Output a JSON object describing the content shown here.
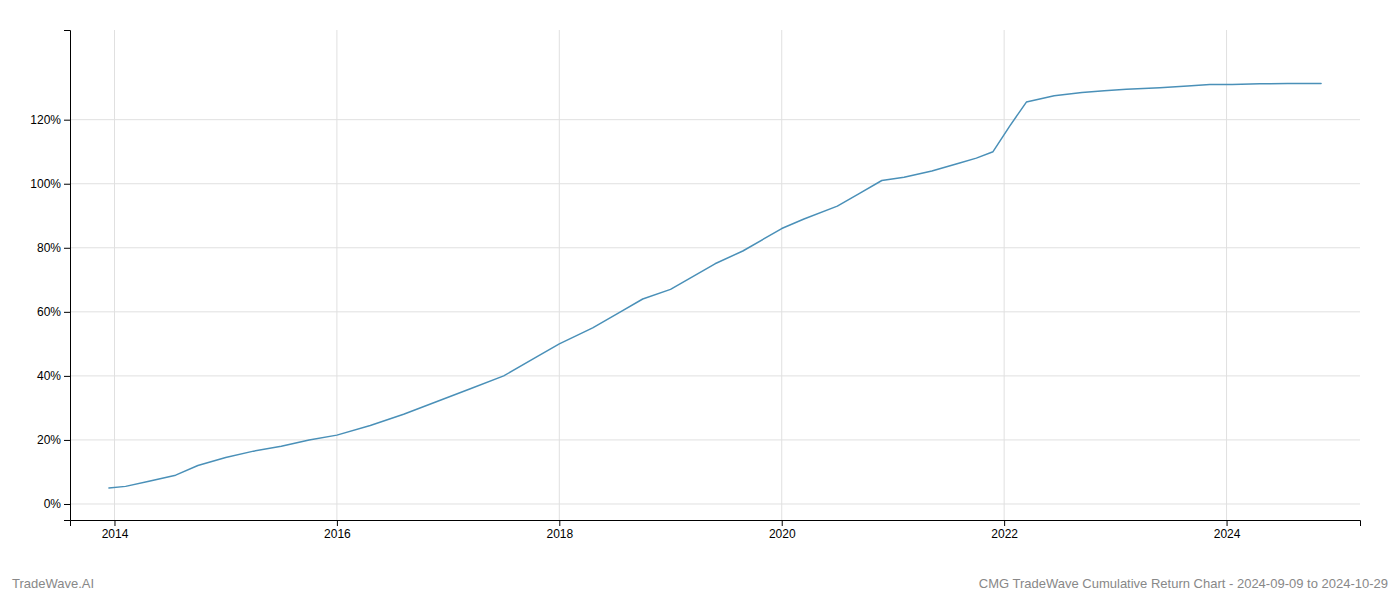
{
  "chart_data": {
    "type": "line",
    "title": "CMG TradeWave Cumulative Return Chart - 2024-09-09 to 2024-10-29",
    "annotations": [
      "TradeWave.AI"
    ],
    "color": "#4a90b8",
    "x": [
      2013.95,
      2014.1,
      2014.3,
      2014.55,
      2014.75,
      2015.0,
      2015.25,
      2015.5,
      2015.75,
      2016.0,
      2016.3,
      2016.6,
      2016.9,
      2017.2,
      2017.5,
      2017.8,
      2018.0,
      2018.3,
      2018.55,
      2018.75,
      2019.0,
      2019.2,
      2019.4,
      2019.65,
      2019.85,
      2020.0,
      2020.2,
      2020.5,
      2020.7,
      2020.9,
      2021.1,
      2021.35,
      2021.6,
      2021.75,
      2021.9,
      2022.05,
      2022.2,
      2022.45,
      2022.7,
      2022.9,
      2023.1,
      2023.4,
      2023.65,
      2023.85,
      2024.05,
      2024.3,
      2024.55,
      2024.75,
      2024.85
    ],
    "values": [
      5.0,
      5.5,
      7.0,
      9.0,
      12.0,
      14.5,
      16.5,
      18.0,
      20.0,
      21.5,
      24.5,
      28.0,
      32.0,
      36.0,
      40.0,
      46.0,
      50.0,
      55.0,
      60.0,
      64.0,
      67.0,
      71.0,
      75.0,
      79.0,
      83.0,
      86.0,
      89.0,
      93.0,
      97.0,
      101.0,
      102.0,
      104.0,
      106.5,
      108.0,
      110.0,
      118.0,
      125.5,
      127.5,
      128.5,
      129.0,
      129.5,
      130.0,
      130.5,
      131.0,
      131.0,
      131.2,
      131.3,
      131.3,
      131.3
    ],
    "xlim": [
      2013.6,
      2025.2
    ],
    "ylim": [
      -5,
      148
    ],
    "xticks": [
      2014,
      2016,
      2018,
      2020,
      2022,
      2024
    ],
    "yticks": [
      {
        "value": 0,
        "label": "0%"
      },
      {
        "value": 20,
        "label": "20%"
      },
      {
        "value": 40,
        "label": "40%"
      },
      {
        "value": 60,
        "label": "60%"
      },
      {
        "value": 80,
        "label": "80%"
      },
      {
        "value": 100,
        "label": "100%"
      },
      {
        "value": 120,
        "label": "120%"
      }
    ],
    "grid": true
  }
}
